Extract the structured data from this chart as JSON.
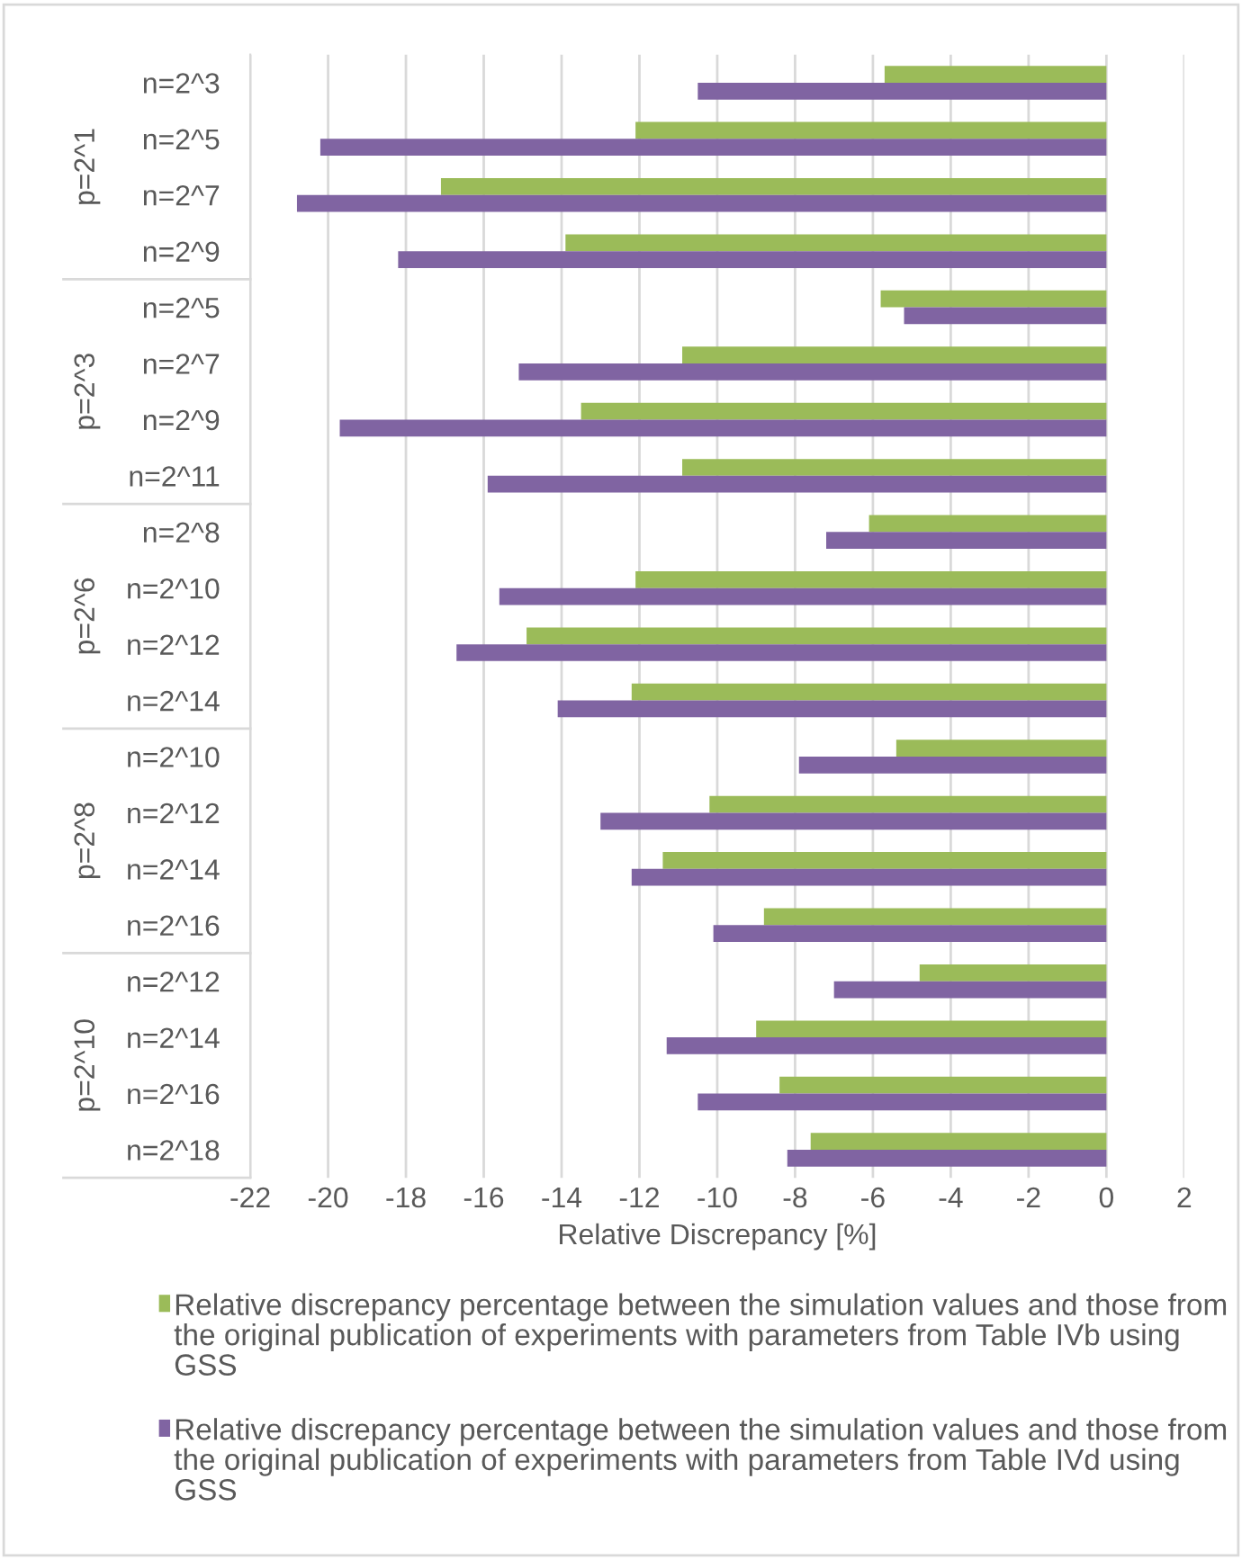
{
  "chart_data": {
    "type": "bar",
    "orientation": "horizontal",
    "xlabel": "Relative Discrepancy [%]",
    "categories": [
      "n=2^3",
      "n=2^5",
      "n=2^7",
      "n=2^9",
      "n=2^5",
      "n=2^7",
      "n=2^9",
      "n=2^11",
      "n=2^8",
      "n=2^10",
      "n=2^12",
      "n=2^14",
      "n=2^10",
      "n=2^12",
      "n=2^14",
      "n=2^16",
      "n=2^12",
      "n=2^14",
      "n=2^16",
      "n=2^18"
    ],
    "annotations": [
      "p=2^1",
      "p=2^3",
      "p=2^6",
      "p=2^8",
      "p=2^10"
    ],
    "series": [
      {
        "name": "Relative discrepancy percentage between the simulation values and those from the original publication of experiments with parameters from Table IVb using GSS",
        "color": "#9bbb59",
        "values": [
          -5.7,
          -12.1,
          -17.1,
          -13.9,
          -5.8,
          -10.9,
          -13.5,
          -10.9,
          -6.1,
          -12.1,
          -14.9,
          -12.2,
          -5.4,
          -10.2,
          -11.4,
          -8.8,
          -4.8,
          -9.0,
          -8.4,
          -7.6
        ]
      },
      {
        "name": "Relative discrepancy percentage between the simulation values and those from the original publication of experiments with parameters from Table IVd using GSS",
        "color": "#8064a2",
        "values": [
          -10.5,
          -20.2,
          -20.8,
          -18.2,
          -5.2,
          -15.1,
          -19.7,
          -15.9,
          -7.2,
          -15.6,
          -16.7,
          -14.1,
          -7.9,
          -13.0,
          -12.2,
          -10.1,
          -7.0,
          -11.3,
          -10.5,
          -8.2
        ]
      }
    ],
    "xlim": [
      -22,
      2
    ],
    "xticks": [
      -22,
      -20,
      -18,
      -16,
      -14,
      -12,
      -10,
      -8,
      -6,
      -4,
      -2,
      0,
      2
    ],
    "grid": "x",
    "legend": "bottom"
  }
}
